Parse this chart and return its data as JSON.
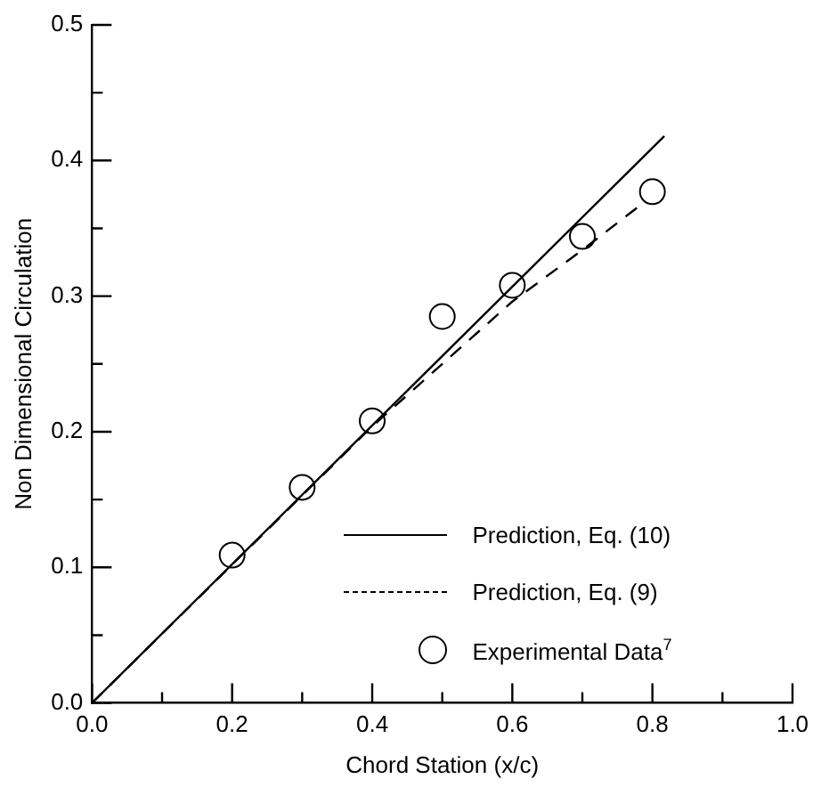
{
  "chart_data": {
    "type": "line",
    "xlabel": "Chord Station (x/c)",
    "ylabel": "Non Dimensional Circulation",
    "xlim": [
      0,
      1
    ],
    "ylim": [
      0,
      0.5
    ],
    "xticks": [
      {
        "value": 0,
        "label": "0.0"
      },
      {
        "value": 0.1,
        "label": null
      },
      {
        "value": 0.2,
        "label": "0.2"
      },
      {
        "value": 0.3,
        "label": null
      },
      {
        "value": 0.4,
        "label": "0.4"
      },
      {
        "value": 0.5,
        "label": null
      },
      {
        "value": 0.6,
        "label": "0.6"
      },
      {
        "value": 0.7,
        "label": null
      },
      {
        "value": 0.8,
        "label": "0.8"
      },
      {
        "value": 0.9,
        "label": null
      },
      {
        "value": 1,
        "label": "1.0"
      }
    ],
    "yticks": [
      {
        "value": 0,
        "label": "0.0"
      },
      {
        "value": 0.05,
        "label": null
      },
      {
        "value": 0.1,
        "label": "0.1"
      },
      {
        "value": 0.15,
        "label": null
      },
      {
        "value": 0.2,
        "label": "0.2"
      },
      {
        "value": 0.25,
        "label": null
      },
      {
        "value": 0.3,
        "label": "0.3"
      },
      {
        "value": 0.35,
        "label": null
      },
      {
        "value": 0.4,
        "label": "0.4"
      },
      {
        "value": 0.45,
        "label": null
      },
      {
        "value": 0.5,
        "label": "0.5"
      }
    ],
    "grid": false,
    "legend": "bottom right",
    "series": [
      {
        "name": "Prediction, Eq. (10)",
        "color": "#000000",
        "line_style": "solid",
        "marker": "none",
        "x": [
          0,
          0.817
        ],
        "values": [
          0,
          0.418
        ]
      },
      {
        "name": "Prediction, Eq. (9)",
        "color": "#000000",
        "line_style": "dashed",
        "marker": "none",
        "x": [
          0,
          0.2,
          0.4,
          0.5,
          0.6,
          0.7,
          0.79
        ],
        "values": [
          0,
          0.102,
          0.204,
          0.25,
          0.296,
          0.334,
          0.37
        ]
      },
      {
        "name": "Experimental Data$^{7}$",
        "type": "scatter",
        "color": "#000000",
        "marker": "circle",
        "x": [
          0.2,
          0.3,
          0.4,
          0.5,
          0.6,
          0.7,
          0.8
        ],
        "values": [
          0.109,
          0.159,
          0.208,
          0.285,
          0.308,
          0.344,
          0.377
        ]
      }
    ]
  }
}
